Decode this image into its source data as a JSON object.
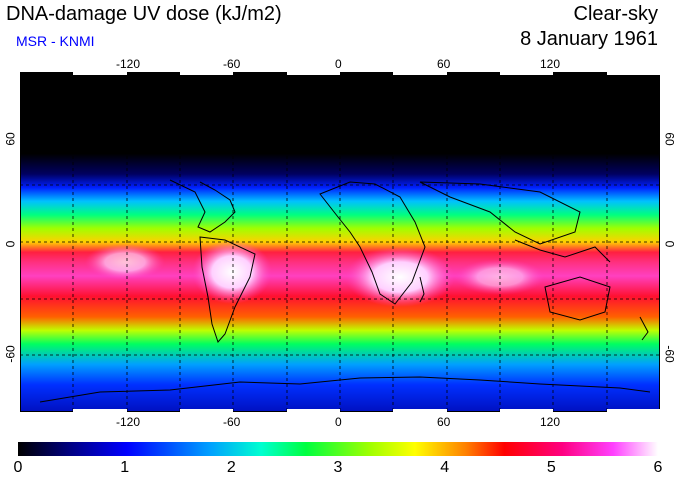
{
  "header": {
    "title": "DNA-damage UV dose (kJ/m2)",
    "subtitle": "MSR - KNMI",
    "condition": "Clear-sky",
    "date": "8 January 1961"
  },
  "map": {
    "lon_ticks": [
      "-120",
      "-60",
      "0",
      "60",
      "120"
    ],
    "lat_ticks": [
      "60",
      "0",
      "-60"
    ]
  },
  "colorbar": {
    "labels": [
      "0",
      "1",
      "2",
      "3",
      "4",
      "5",
      "6"
    ],
    "min": 0,
    "max": 6,
    "unit": "kJ/m2"
  },
  "colors": {
    "subtitle": "#0000ff",
    "night": "#000000",
    "low": "#0010ff",
    "mid": "#00ff40",
    "high": "#ff0030",
    "peak": "#ffffff"
  }
}
